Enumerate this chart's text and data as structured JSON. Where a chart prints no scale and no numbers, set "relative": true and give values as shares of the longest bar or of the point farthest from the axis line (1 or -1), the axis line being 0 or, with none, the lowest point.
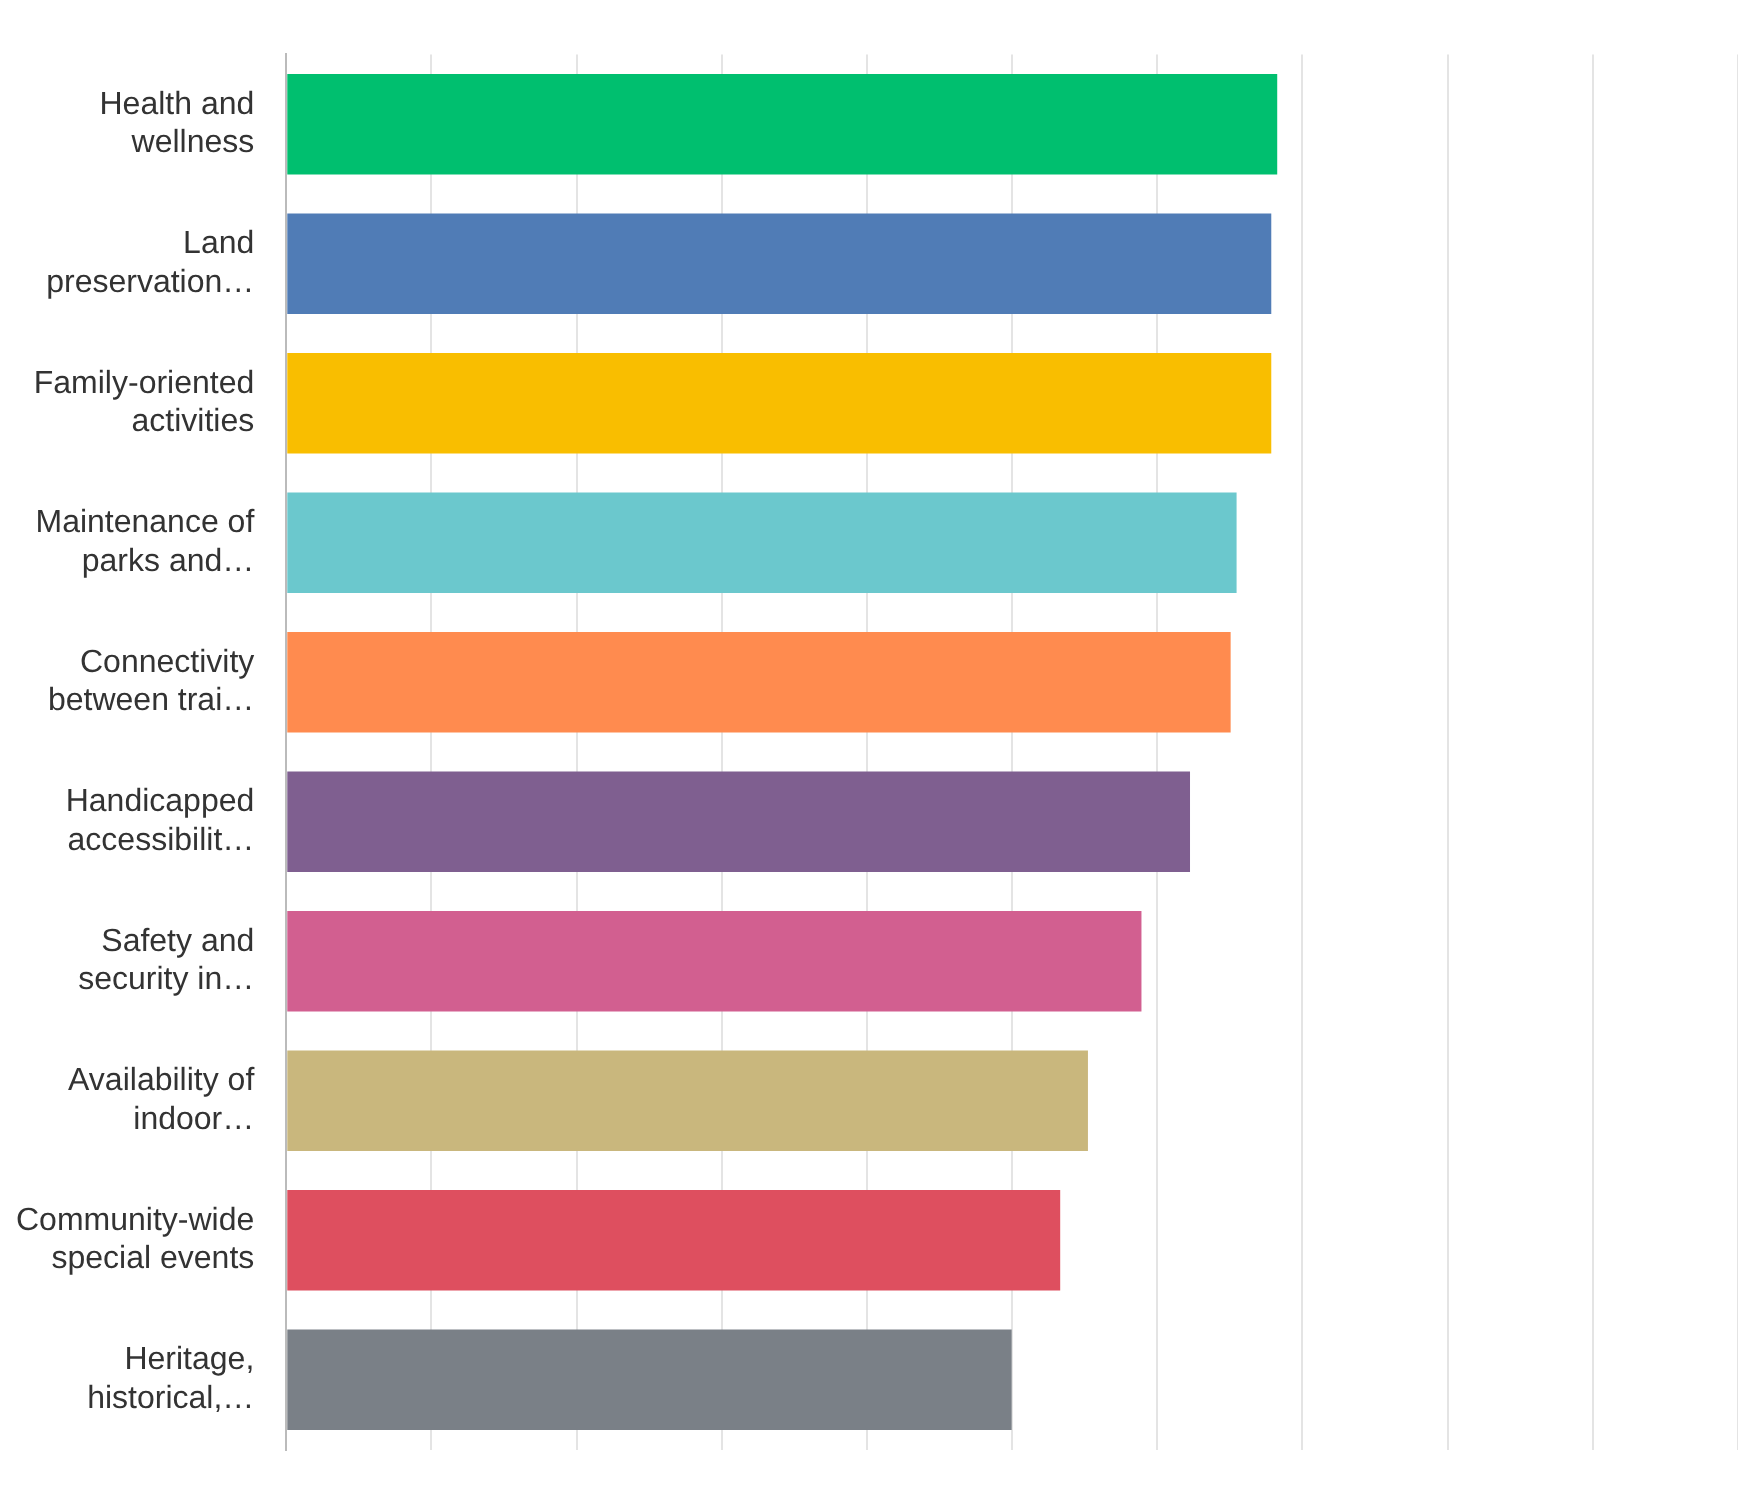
{
  "chart_data": {
    "type": "bar",
    "orientation": "horizontal",
    "relative": true,
    "grid": "x",
    "legend": false,
    "categories": [
      "Health and wellness",
      "Land preservation…",
      "Family-oriented activities",
      "Maintenance of parks and…",
      "Connectivity between trai…",
      "Handicapped accessibilit…",
      "Safety and security in…",
      "Availability of indoor…",
      "Community-wide special events",
      "Heritage, historical,…"
    ],
    "values": [
      1,
      0.994,
      0.994,
      0.959,
      0.953,
      0.912,
      0.863,
      0.809,
      0.781,
      0.732
    ],
    "colors": [
      "#00bf6f",
      "#507cb6",
      "#f9be00",
      "#6bc8cd",
      "#ff8b4f",
      "#7f5f90",
      "#d25f90",
      "#c9b77d",
      "#de4f5f",
      "#7a8087"
    ]
  }
}
